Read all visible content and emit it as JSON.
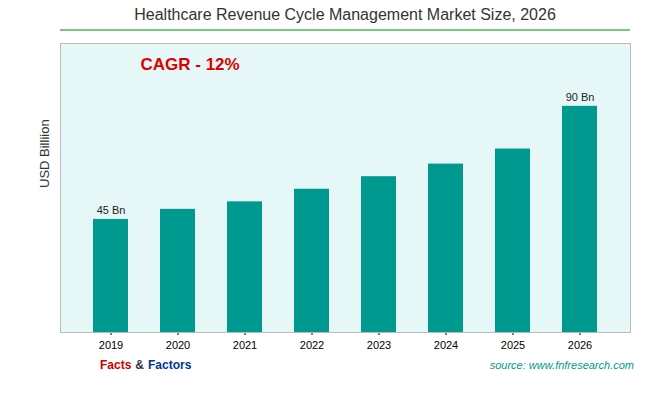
{
  "chart_data": {
    "type": "bar",
    "title": "Healthcare Revenue Cycle Management Market Size, 2026",
    "ylabel": "USD Billiion",
    "categories": [
      "2019",
      "2020",
      "2021",
      "2022",
      "2023",
      "2024",
      "2025",
      "2026"
    ],
    "values": [
      45,
      49,
      52,
      57,
      62,
      67,
      73,
      90
    ],
    "color": "#009990",
    "ylim": [
      0,
      115
    ],
    "yticks": [],
    "grid": false,
    "tick_labels": "x",
    "annotations": [
      {
        "text": "45 Bn",
        "category": "2019"
      },
      {
        "text": "90 Bn",
        "category": "2026"
      },
      {
        "text": "CAGR - 12%",
        "color": "#dd0000"
      }
    ],
    "footer": [
      {
        "text": "Facts",
        "color": "#cc0000"
      },
      {
        "text": "&"
      },
      {
        "text": "Factors",
        "color": "#003399"
      }
    ],
    "source": {
      "text": "source: www.fnfresearch.com",
      "color": "#009990"
    }
  }
}
